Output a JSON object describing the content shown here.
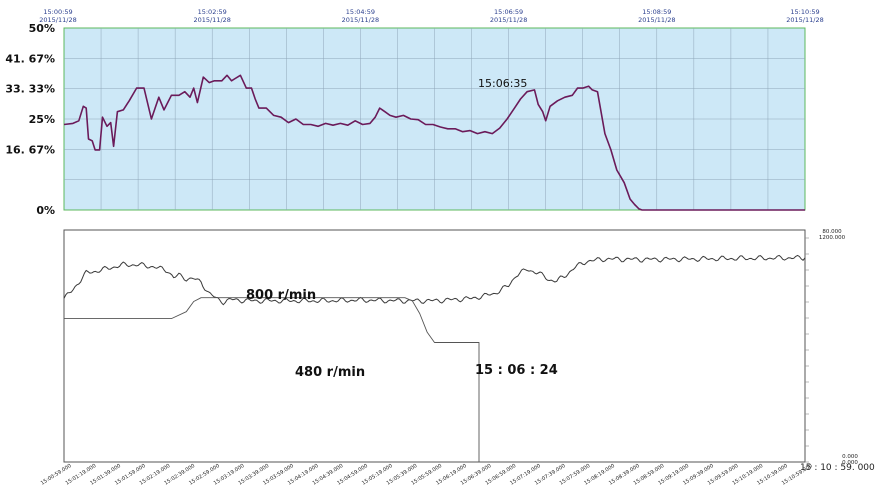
{
  "colors": {
    "top_bg": "#cde8f7",
    "top_border": "#5cb85c",
    "top_grid": "#8fa6b8",
    "top_line": "#6b1b5a",
    "time_label": "#2b3f8e",
    "bottom_line": "#3a3a3a",
    "bottom_border": "#555555"
  },
  "chart_data": [
    {
      "type": "line",
      "x_labels": [
        {
          "time": "15:00:59",
          "date": "2015/11/28"
        },
        {
          "time": "15:02:59",
          "date": "2015/11/28"
        },
        {
          "time": "15:04:59",
          "date": "2015/11/28"
        },
        {
          "time": "15:06:59",
          "date": "2015/11/28"
        },
        {
          "time": "15:08:59",
          "date": "2015/11/28"
        },
        {
          "time": "15:10:59",
          "date": "2015/11/28"
        }
      ],
      "y_ticks": [
        {
          "value": 50,
          "label": "50%"
        },
        {
          "value": 41.67,
          "label": "41. 67%"
        },
        {
          "value": 33.33,
          "label": "33. 33%"
        },
        {
          "value": 25,
          "label": "25%"
        },
        {
          "value": 16.67,
          "label": "16. 67%"
        },
        {
          "value": 0,
          "label": "0%"
        }
      ],
      "ylim": [
        0,
        50
      ],
      "xlim_minutes": [
        0,
        10
      ],
      "grid": true,
      "annotation": "15:06:35",
      "series": [
        {
          "points": [
            [
              0.0,
              23.5
            ],
            [
              0.12,
              23.8
            ],
            [
              0.2,
              24.5
            ],
            [
              0.26,
              28.5
            ],
            [
              0.3,
              28.0
            ],
            [
              0.33,
              19.5
            ],
            [
              0.38,
              19.0
            ],
            [
              0.42,
              16.5
            ],
            [
              0.48,
              16.5
            ],
            [
              0.52,
              25.5
            ],
            [
              0.58,
              23.0
            ],
            [
              0.63,
              24.0
            ],
            [
              0.67,
              17.5
            ],
            [
              0.72,
              27.0
            ],
            [
              0.8,
              27.5
            ],
            [
              0.88,
              30.0
            ],
            [
              0.98,
              33.5
            ],
            [
              1.08,
              33.5
            ],
            [
              1.18,
              25.0
            ],
            [
              1.28,
              31.0
            ],
            [
              1.35,
              27.5
            ],
            [
              1.45,
              31.5
            ],
            [
              1.55,
              31.5
            ],
            [
              1.63,
              32.5
            ],
            [
              1.7,
              31.0
            ],
            [
              1.75,
              33.5
            ],
            [
              1.8,
              29.5
            ],
            [
              1.88,
              36.5
            ],
            [
              1.96,
              35.0
            ],
            [
              2.03,
              35.5
            ],
            [
              2.13,
              35.5
            ],
            [
              2.2,
              37.0
            ],
            [
              2.26,
              35.5
            ],
            [
              2.3,
              36.0
            ],
            [
              2.38,
              37.0
            ],
            [
              2.46,
              33.5
            ],
            [
              2.53,
              33.5
            ],
            [
              2.58,
              30.5
            ],
            [
              2.63,
              28.0
            ],
            [
              2.73,
              28.0
            ],
            [
              2.83,
              26.0
            ],
            [
              2.93,
              25.5
            ],
            [
              3.03,
              24.0
            ],
            [
              3.13,
              25.0
            ],
            [
              3.23,
              23.5
            ],
            [
              3.33,
              23.5
            ],
            [
              3.43,
              23.0
            ],
            [
              3.53,
              23.8
            ],
            [
              3.63,
              23.3
            ],
            [
              3.73,
              23.8
            ],
            [
              3.83,
              23.3
            ],
            [
              3.93,
              24.5
            ],
            [
              4.03,
              23.5
            ],
            [
              4.13,
              23.8
            ],
            [
              4.2,
              25.5
            ],
            [
              4.26,
              28.0
            ],
            [
              4.33,
              27.0
            ],
            [
              4.4,
              26.0
            ],
            [
              4.48,
              25.5
            ],
            [
              4.58,
              26.0
            ],
            [
              4.68,
              25.0
            ],
            [
              4.78,
              24.8
            ],
            [
              4.88,
              23.5
            ],
            [
              4.98,
              23.5
            ],
            [
              5.08,
              22.8
            ],
            [
              5.18,
              22.3
            ],
            [
              5.28,
              22.3
            ],
            [
              5.38,
              21.5
            ],
            [
              5.48,
              21.8
            ],
            [
              5.58,
              21.0
            ],
            [
              5.68,
              21.5
            ],
            [
              5.78,
              21.0
            ],
            [
              5.88,
              22.5
            ],
            [
              5.98,
              25.0
            ],
            [
              6.08,
              28.0
            ],
            [
              6.16,
              30.5
            ],
            [
              6.25,
              32.5
            ],
            [
              6.35,
              33.0
            ],
            [
              6.4,
              29.0
            ],
            [
              6.46,
              27.0
            ],
            [
              6.5,
              24.5
            ],
            [
              6.56,
              28.5
            ],
            [
              6.66,
              30.0
            ],
            [
              6.76,
              31.0
            ],
            [
              6.86,
              31.5
            ],
            [
              6.93,
              33.5
            ],
            [
              7.0,
              33.5
            ],
            [
              7.08,
              34.0
            ],
            [
              7.13,
              33.0
            ],
            [
              7.2,
              32.5
            ],
            [
              7.3,
              21.0
            ],
            [
              7.38,
              16.5
            ],
            [
              7.46,
              11.0
            ],
            [
              7.56,
              7.5
            ],
            [
              7.64,
              3.0
            ],
            [
              7.7,
              1.5
            ],
            [
              7.76,
              0.3
            ],
            [
              7.8,
              0.0
            ],
            [
              8.5,
              0.0
            ],
            [
              9.5,
              0.0
            ],
            [
              10.0,
              0.0
            ]
          ]
        }
      ]
    },
    {
      "type": "line",
      "x_tick_labels": [
        "15:00:59.000",
        "15:01:19.000",
        "15:01:39.000",
        "15:01:59.000",
        "15:02:19.000",
        "15:02:39.000",
        "15:02:59.000",
        "15:03:19.000",
        "15:03:39.000",
        "15:03:59.000",
        "15:04:19.000",
        "15:04:39.000",
        "15:04:59.000",
        "15:05:19.000",
        "15:05:39.000",
        "15:05:59.000",
        "15:06:19.000",
        "15:06:39.000",
        "15:06:59.000",
        "15:07:19.000",
        "15:07:39.000",
        "15:07:59.000",
        "15:08:19.000",
        "15:08:39.000",
        "15:08:59.000",
        "15:09:19.000",
        "15:09:39.000",
        "15:09:59.000",
        "15:10:19.000",
        "15:10:39.000",
        "15:10:59.000"
      ],
      "right_top_labels": [
        "80.000",
        "1200.000"
      ],
      "right_bottom_labels": [
        "0.000",
        "0.000"
      ],
      "end_label": "15 : 10 : 59. 000",
      "annotations": [
        "800 r/min",
        "480 r/min",
        "15 : 06 : 24"
      ],
      "grid": false,
      "xlim_minutes": [
        0,
        10
      ],
      "series": [
        {
          "points": [
            [
              0.0,
              0.705
            ],
            [
              0.1,
              0.735
            ],
            [
              0.2,
              0.775
            ],
            [
              0.3,
              0.815
            ],
            [
              0.4,
              0.82
            ],
            [
              0.6,
              0.835
            ],
            [
              0.8,
              0.85
            ],
            [
              1.0,
              0.85
            ],
            [
              1.2,
              0.842
            ],
            [
              1.4,
              0.825
            ],
            [
              1.48,
              0.795
            ],
            [
              1.55,
              0.805
            ],
            [
              1.65,
              0.79
            ],
            [
              1.75,
              0.79
            ],
            [
              1.85,
              0.775
            ],
            [
              1.95,
              0.73
            ],
            [
              2.05,
              0.705
            ],
            [
              2.15,
              0.69
            ],
            [
              2.25,
              0.7
            ],
            [
              2.5,
              0.695
            ],
            [
              3.0,
              0.695
            ],
            [
              3.5,
              0.695
            ],
            [
              4.0,
              0.698
            ],
            [
              4.5,
              0.695
            ],
            [
              5.0,
              0.695
            ],
            [
              5.5,
              0.705
            ],
            [
              5.8,
              0.725
            ],
            [
              6.0,
              0.76
            ],
            [
              6.1,
              0.805
            ],
            [
              6.25,
              0.83
            ],
            [
              6.4,
              0.815
            ],
            [
              6.55,
              0.785
            ],
            [
              6.65,
              0.78
            ],
            [
              6.75,
              0.8
            ],
            [
              6.9,
              0.84
            ],
            [
              7.05,
              0.865
            ],
            [
              7.3,
              0.875
            ],
            [
              7.8,
              0.873
            ],
            [
              8.5,
              0.875
            ],
            [
              9.2,
              0.878
            ],
            [
              10.0,
              0.88
            ]
          ]
        },
        {
          "points": [
            [
              0.0,
              0.618
            ],
            [
              1.45,
              0.618
            ],
            [
              1.65,
              0.648
            ],
            [
              1.75,
              0.692
            ],
            [
              1.85,
              0.708
            ],
            [
              2.1,
              0.708
            ],
            [
              4.0,
              0.708
            ],
            [
              4.6,
              0.708
            ],
            [
              4.7,
              0.695
            ],
            [
              4.8,
              0.64
            ],
            [
              4.9,
              0.56
            ],
            [
              5.0,
              0.515
            ],
            [
              5.6,
              0.515
            ],
            [
              5.6,
              0.0
            ],
            [
              6.0,
              0.0
            ],
            [
              10.0,
              0.0
            ]
          ]
        }
      ]
    }
  ]
}
